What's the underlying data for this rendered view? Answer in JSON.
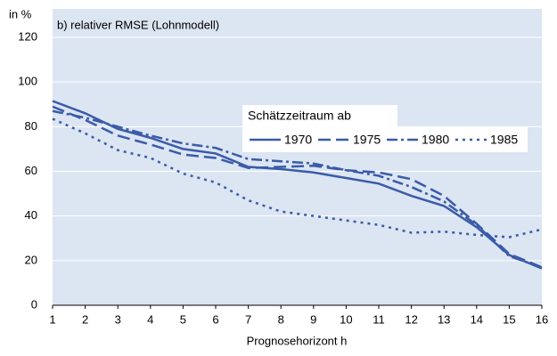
{
  "chart_data": {
    "type": "line",
    "title": "b) relativer RMSE (Lohnmodell)",
    "y_unit": "in %",
    "x_label": "Prognosehorizont h",
    "legend_title": "Schätzzeitraum ab",
    "x": [
      1,
      2,
      3,
      4,
      5,
      6,
      7,
      8,
      9,
      10,
      11,
      12,
      13,
      14,
      15,
      16
    ],
    "series": [
      {
        "name": "1970",
        "color": "#3a5ba8",
        "dash": "solid",
        "values": [
          91.5,
          86,
          79,
          75,
          70,
          68,
          62,
          61,
          59.5,
          57,
          54.5,
          49,
          44.5,
          35,
          22.5,
          16.5
        ]
      },
      {
        "name": "1975",
        "color": "#3a5ba8",
        "dash": "long",
        "values": [
          89,
          83,
          76,
          72,
          67.5,
          66,
          61.5,
          62,
          62.5,
          60.5,
          59.5,
          56.5,
          49,
          36.5,
          23,
          17
        ]
      },
      {
        "name": "1980",
        "color": "#3a5ba8",
        "dash": "dashdot",
        "values": [
          87,
          84,
          80,
          76,
          72.5,
          70.5,
          65.5,
          64.5,
          63.5,
          60.5,
          58,
          53,
          46.5,
          36,
          22,
          17
        ]
      },
      {
        "name": "1985",
        "color": "#3a5ba8",
        "dash": "dot",
        "values": [
          83.5,
          77,
          69.5,
          66,
          59,
          55,
          47,
          42,
          40,
          38,
          36,
          32.5,
          33,
          31.5,
          30.5,
          34
        ]
      }
    ],
    "xlim": [
      1,
      16
    ],
    "xticks": [
      1,
      2,
      3,
      4,
      5,
      6,
      7,
      8,
      9,
      10,
      11,
      12,
      13,
      14,
      15,
      16
    ],
    "ylim": [
      0,
      120
    ],
    "yticks": [
      0,
      20,
      40,
      60,
      80,
      100,
      120
    ],
    "grid": true,
    "background": "#dce5f2"
  }
}
